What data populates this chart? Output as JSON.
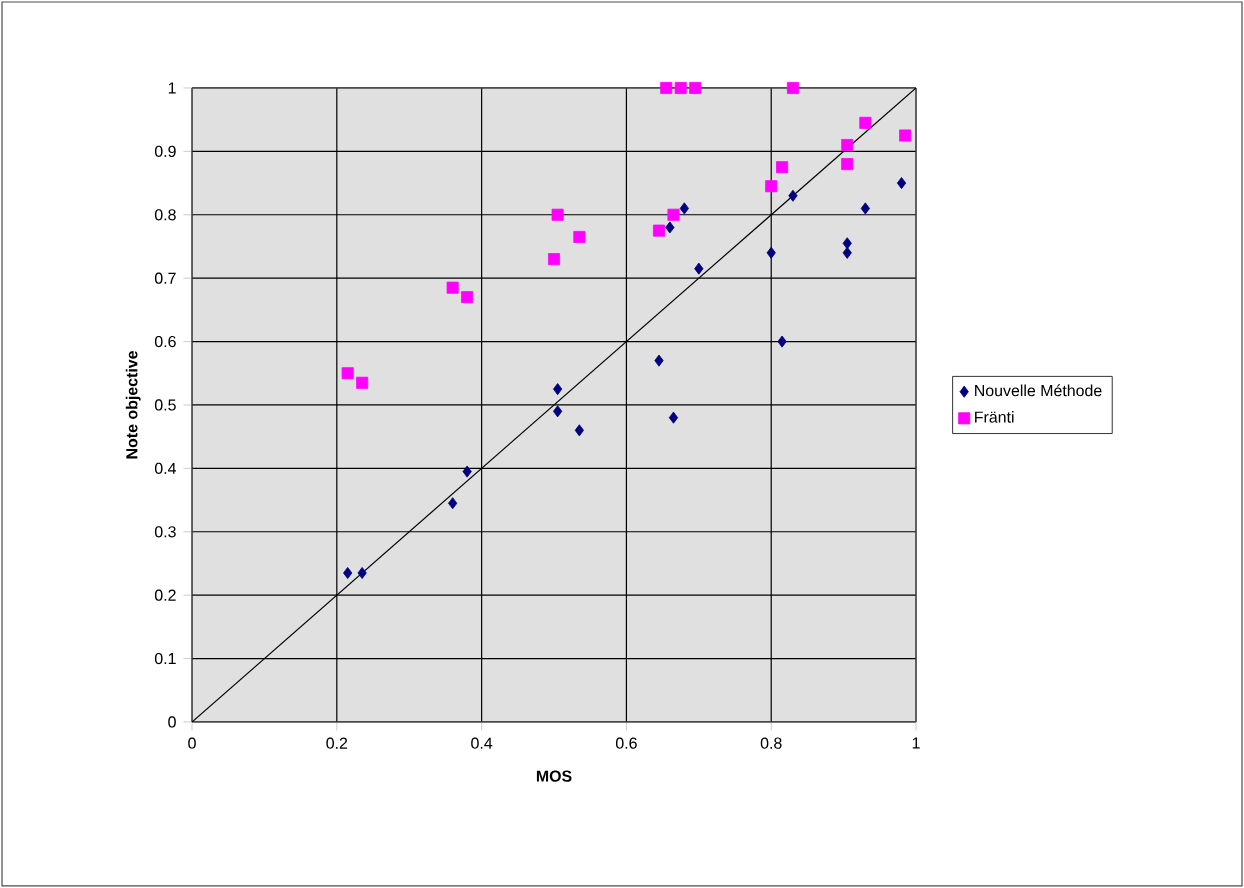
{
  "chart_data": {
    "type": "scatter",
    "xlabel": "MOS",
    "ylabel": "Note objective",
    "xlim": [
      0,
      1
    ],
    "ylim": [
      0,
      1
    ],
    "xticks": [
      0,
      0.2,
      0.4,
      0.6,
      0.8,
      1
    ],
    "yticks": [
      0,
      0.1,
      0.2,
      0.3,
      0.4,
      0.5,
      0.6,
      0.7,
      0.8,
      0.9,
      1
    ],
    "grid": true,
    "legend": "right",
    "series": [
      {
        "name": "Nouvelle Méthode",
        "color": "#000080",
        "marker": "diamond",
        "x": [
          0.215,
          0.235,
          0.36,
          0.38,
          0.505,
          0.505,
          0.535,
          0.645,
          0.665,
          0.66,
          0.68,
          0.7,
          0.8,
          0.815,
          0.83,
          0.905,
          0.905,
          0.93,
          0.98
        ],
        "values": [
          0.235,
          0.235,
          0.345,
          0.395,
          0.525,
          0.49,
          0.46,
          0.57,
          0.48,
          0.78,
          0.81,
          0.715,
          0.74,
          0.6,
          0.83,
          0.74,
          0.755,
          0.81,
          0.85
        ]
      },
      {
        "name": "Fränti",
        "color": "#ff00ff",
        "marker": "square",
        "x": [
          0.215,
          0.235,
          0.36,
          0.38,
          0.5,
          0.505,
          0.535,
          0.645,
          0.665,
          0.655,
          0.675,
          0.695,
          0.83,
          0.8,
          0.815,
          0.905,
          0.905,
          0.93,
          0.985
        ],
        "values": [
          0.55,
          0.535,
          0.685,
          0.67,
          0.73,
          0.8,
          0.765,
          0.775,
          0.8,
          1.0,
          1.0,
          1.0,
          1.0,
          0.845,
          0.875,
          0.91,
          0.88,
          0.945,
          0.925
        ]
      },
      {
        "type": "line",
        "color": "#000000",
        "marker": "none",
        "x": [
          0,
          1
        ],
        "values": [
          0,
          1
        ]
      }
    ]
  }
}
